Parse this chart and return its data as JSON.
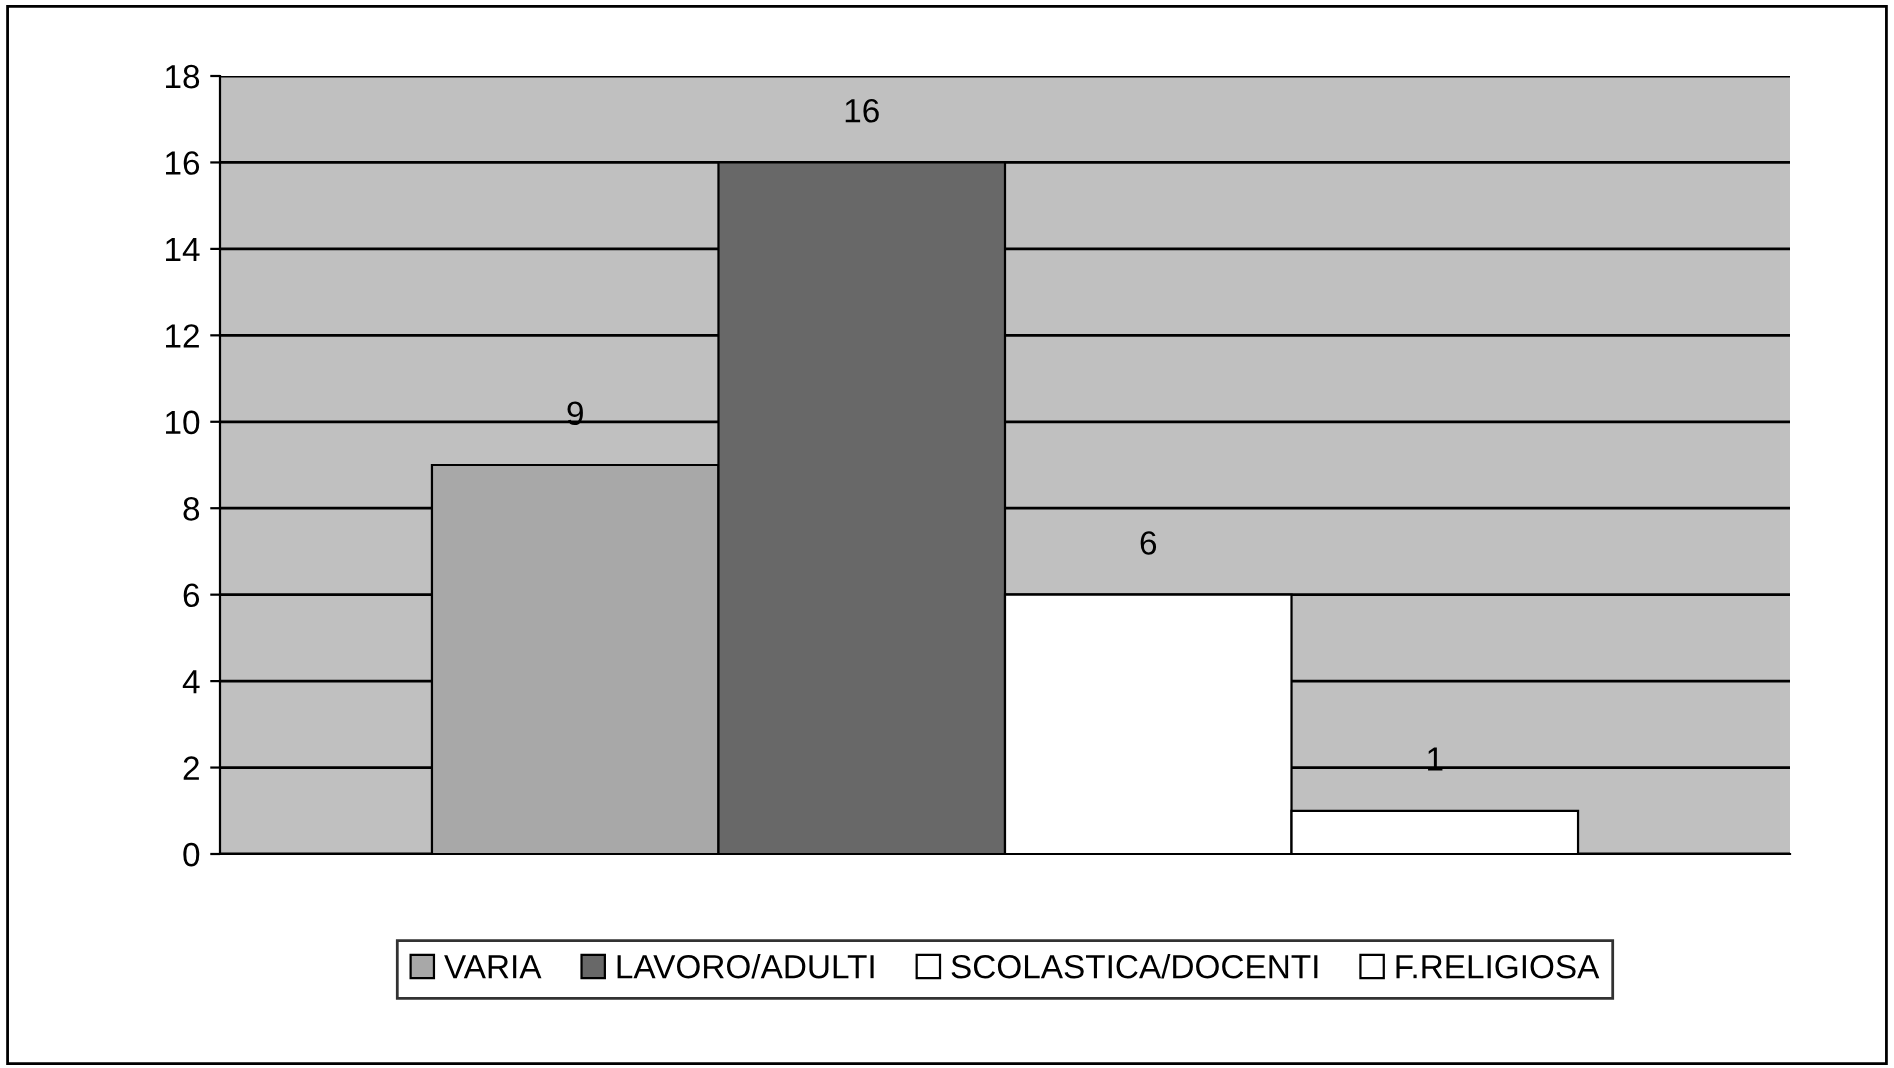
{
  "chart_data": {
    "type": "bar",
    "categories": [
      null
    ],
    "series": [
      {
        "name": "VARIA",
        "color": "#a8a8a8",
        "values": [
          9
        ]
      },
      {
        "name": "LAVORO/ADULTI",
        "color": "#686868",
        "values": [
          16
        ]
      },
      {
        "name": "SCOLASTICA/DOCENTI",
        "color": "#ffffff",
        "values": [
          6
        ]
      },
      {
        "name": "F.RELIGIOSA",
        "color": "#ffffff",
        "values": [
          1
        ]
      }
    ],
    "ylim": [
      0,
      18
    ],
    "yticks": [
      0,
      2,
      4,
      6,
      8,
      10,
      12,
      14,
      16,
      18
    ],
    "grid": "y",
    "legend": "bottom",
    "data_labels": true
  }
}
